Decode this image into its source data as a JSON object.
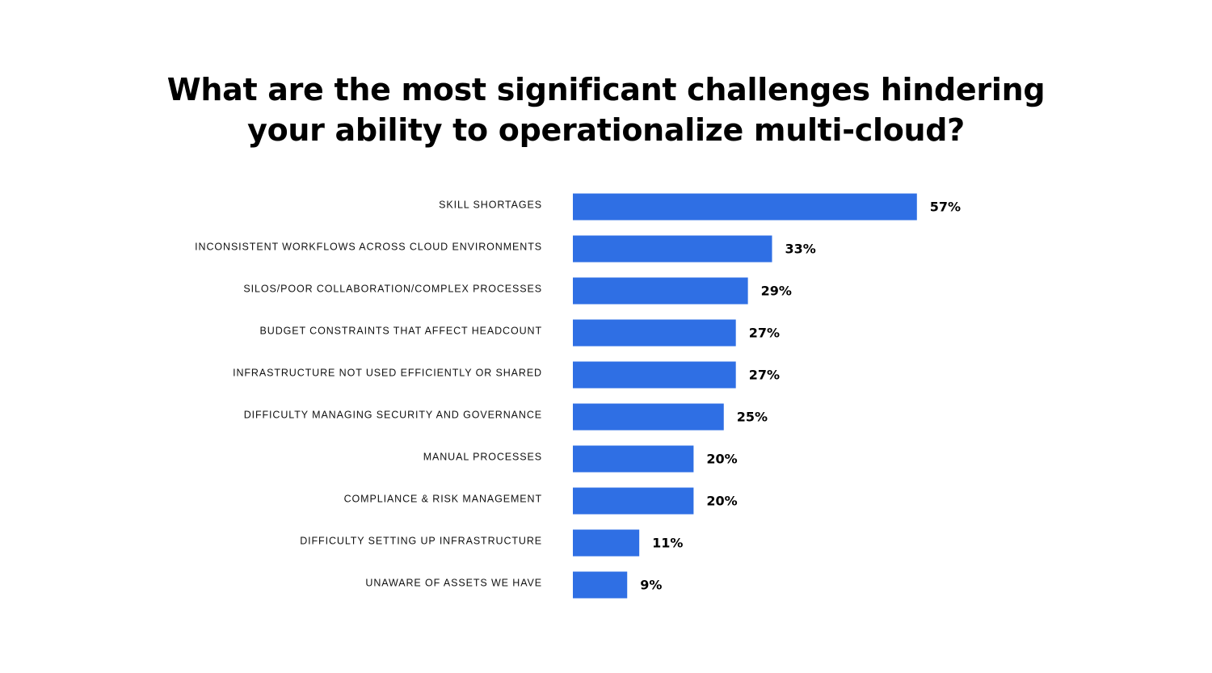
{
  "chart_data": {
    "type": "bar",
    "orientation": "horizontal",
    "title_lines": [
      "What are the most significant challenges hindering",
      "your ability to operationalize multi-cloud?"
    ],
    "categories": [
      "SKILL SHORTAGES",
      "INCONSISTENT WORKFLOWS ACROSS CLOUD ENVIRONMENTS",
      "SILOS/POOR COLLABORATION/COMPLEX PROCESSES",
      "BUDGET CONSTRAINTS THAT AFFECT HEADCOUNT",
      "INFRASTRUCTURE NOT USED EFFICIENTLY OR SHARED",
      "DIFFICULTY MANAGING SECURITY AND GOVERNANCE",
      "MANUAL PROCESSES",
      "COMPLIANCE & RISK MANAGEMENT",
      "DIFFICULTY SETTING UP INFRASTRUCTURE",
      "UNAWARE OF ASSETS WE HAVE"
    ],
    "values": [
      57,
      33,
      29,
      27,
      27,
      25,
      20,
      20,
      11,
      9
    ],
    "value_labels": [
      "57%",
      "33%",
      "29%",
      "27%",
      "27%",
      "25%",
      "20%",
      "20%",
      "11%",
      "9%"
    ],
    "unit": "%",
    "bar_color": "#2f6fe4",
    "grid": false,
    "legend": "none"
  }
}
